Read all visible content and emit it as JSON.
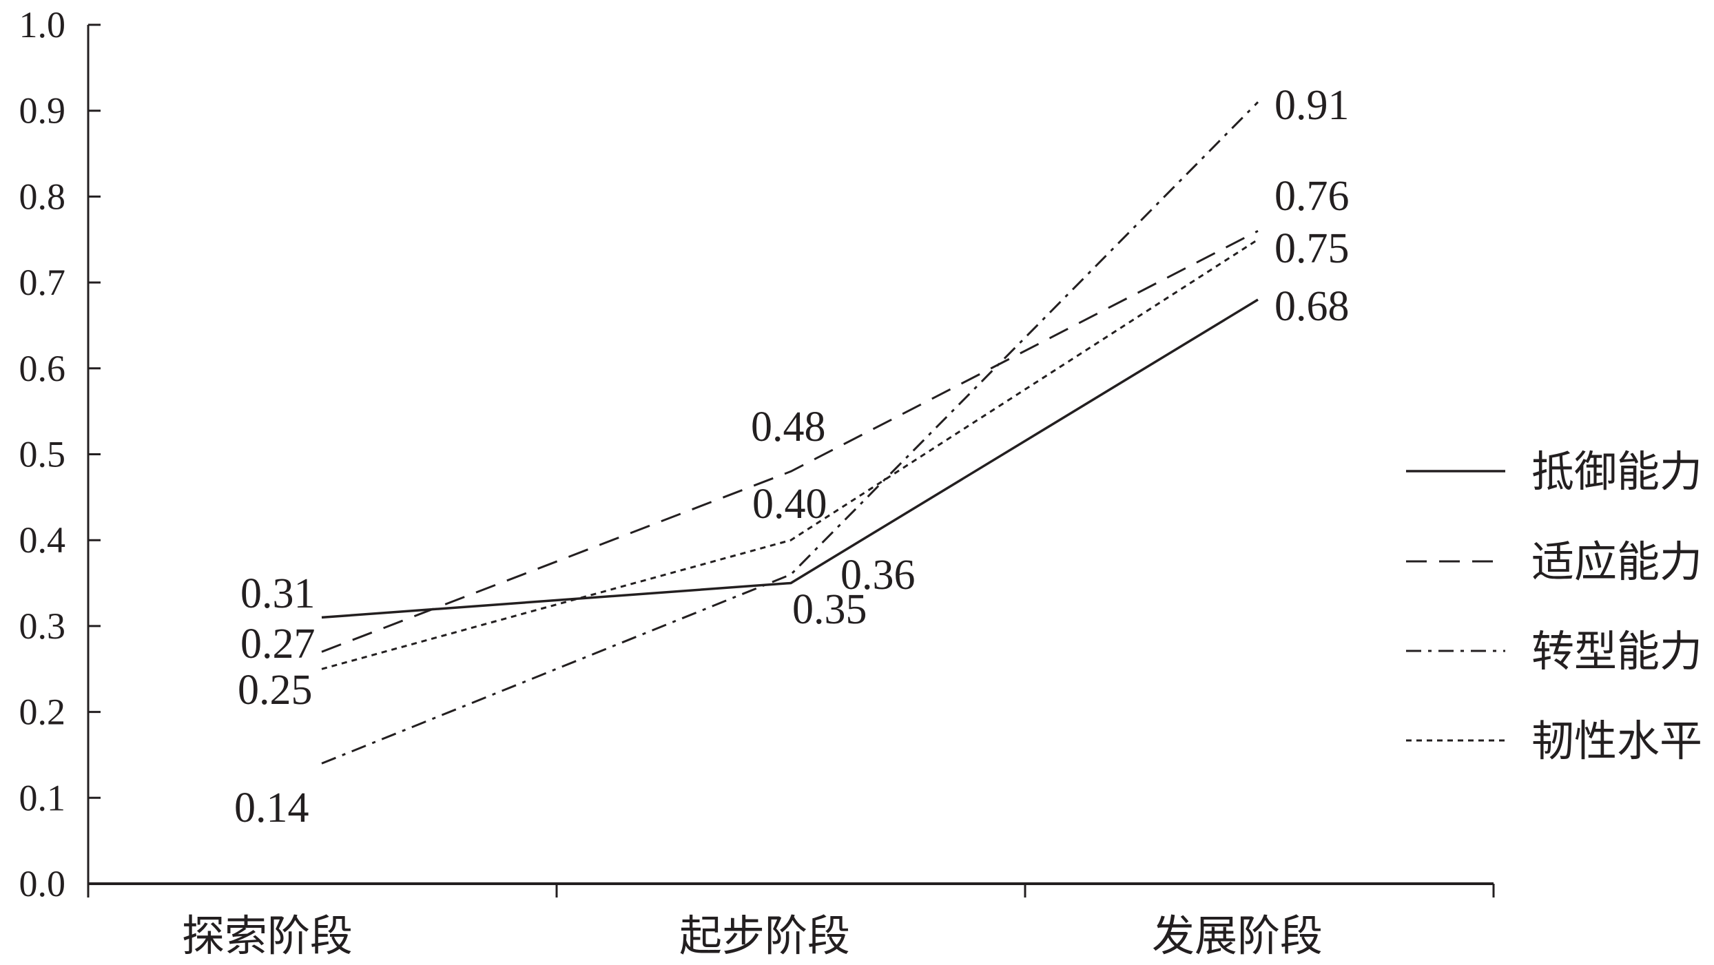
{
  "chart_data": {
    "type": "line",
    "categories": [
      "探索阶段",
      "起步阶段",
      "发展阶段"
    ],
    "ylim": [
      0.0,
      1.0
    ],
    "yticks": [
      "0.0",
      "0.1",
      "0.2",
      "0.3",
      "0.4",
      "0.5",
      "0.6",
      "0.7",
      "0.8",
      "0.9",
      "1.0"
    ],
    "grid": false,
    "legend_position": "right",
    "series": [
      {
        "name": "抵御能力",
        "style": "solid",
        "values": [
          0.31,
          0.35,
          0.68
        ],
        "labels": [
          "0.31",
          "0.35",
          "0.68"
        ]
      },
      {
        "name": "适应能力",
        "style": "dash",
        "values": [
          0.27,
          0.48,
          0.76
        ],
        "labels": [
          "0.27",
          "0.48",
          "0.76"
        ]
      },
      {
        "name": "转型能力",
        "style": "dashdot",
        "values": [
          0.14,
          0.36,
          0.91
        ],
        "labels": [
          "0.14",
          "0.36",
          "0.91"
        ]
      },
      {
        "name": "韧性水平",
        "style": "dot",
        "values": [
          0.25,
          0.4,
          0.75
        ],
        "labels": [
          "0.25",
          "0.40",
          "0.75"
        ]
      }
    ],
    "colors": {
      "line": "#231f20",
      "drop_line": "#4472c4",
      "axis": "#231f20"
    }
  }
}
